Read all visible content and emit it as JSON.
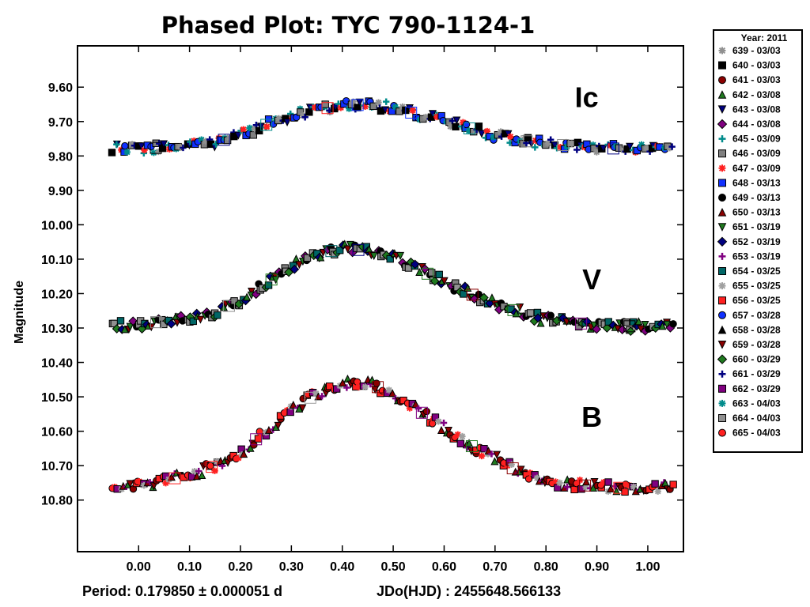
{
  "chart_data": {
    "type": "scatter",
    "title": "Phased Plot: TYC 790-1124-1",
    "xlabel": "",
    "ylabel": "Magnitude",
    "xlim": [
      -0.12,
      1.07
    ],
    "ylim": [
      9.48,
      10.95
    ],
    "y_inverted": true,
    "x_ticks": [
      "0.00",
      "0.10",
      "0.20",
      "0.30",
      "0.40",
      "0.50",
      "0.60",
      "0.70",
      "0.80",
      "0.90",
      "1.00"
    ],
    "y_ticks": [
      "9.60",
      "9.70",
      "9.80",
      "9.90",
      "10.00",
      "10.10",
      "10.20",
      "10.30",
      "10.40",
      "10.50",
      "10.60",
      "10.70",
      "10.80"
    ],
    "band_labels": [
      {
        "text": "Ic",
        "x": 0.88,
        "y": 9.63
      },
      {
        "text": "V",
        "x": 0.89,
        "y": 10.16
      },
      {
        "text": "B",
        "x": 0.89,
        "y": 10.56
      }
    ],
    "bands": [
      {
        "name": "Ic",
        "x": [
          -0.05,
          0.0,
          0.05,
          0.1,
          0.15,
          0.2,
          0.25,
          0.3,
          0.35,
          0.4,
          0.45,
          0.5,
          0.55,
          0.6,
          0.65,
          0.7,
          0.75,
          0.8,
          0.85,
          0.9,
          0.95,
          1.0,
          1.05
        ],
        "mag": [
          9.78,
          9.78,
          9.775,
          9.77,
          9.76,
          9.74,
          9.71,
          9.685,
          9.665,
          9.655,
          9.65,
          9.66,
          9.68,
          9.7,
          9.72,
          9.74,
          9.755,
          9.765,
          9.77,
          9.775,
          9.78,
          9.78,
          9.775
        ]
      },
      {
        "name": "V",
        "x": [
          -0.05,
          0.0,
          0.05,
          0.1,
          0.15,
          0.2,
          0.25,
          0.3,
          0.35,
          0.4,
          0.45,
          0.5,
          0.55,
          0.6,
          0.65,
          0.7,
          0.75,
          0.8,
          0.85,
          0.9,
          0.95,
          1.0,
          1.05
        ],
        "mag": [
          10.29,
          10.29,
          10.28,
          10.27,
          10.255,
          10.22,
          10.17,
          10.12,
          10.085,
          10.07,
          10.075,
          10.095,
          10.13,
          10.165,
          10.2,
          10.23,
          10.255,
          10.275,
          10.285,
          10.29,
          10.295,
          10.295,
          10.29
        ]
      },
      {
        "name": "B",
        "x": [
          -0.05,
          0.0,
          0.05,
          0.1,
          0.15,
          0.2,
          0.25,
          0.3,
          0.35,
          0.4,
          0.45,
          0.5,
          0.55,
          0.6,
          0.65,
          0.7,
          0.75,
          0.8,
          0.85,
          0.9,
          0.95,
          1.0,
          1.05
        ],
        "mag": [
          10.765,
          10.76,
          10.745,
          10.725,
          10.7,
          10.66,
          10.6,
          10.54,
          10.49,
          10.46,
          10.46,
          10.49,
          10.54,
          10.59,
          10.64,
          10.68,
          10.72,
          10.745,
          10.755,
          10.76,
          10.765,
          10.765,
          10.76
        ]
      }
    ],
    "legend_title": "Year: 2011",
    "legend_position": "outside-right",
    "series": [
      {
        "name": "639 - 03/03",
        "marker": "star",
        "color": "#909090"
      },
      {
        "name": "640 - 03/03",
        "marker": "square",
        "color": "#000000"
      },
      {
        "name": "641 - 03/03",
        "marker": "circle",
        "color": "#8b0000"
      },
      {
        "name": "642 - 03/08",
        "marker": "triangle-up",
        "color": "#1f7a1f"
      },
      {
        "name": "643 - 03/08",
        "marker": "triangle-down",
        "color": "#000080"
      },
      {
        "name": "644 - 03/08",
        "marker": "diamond",
        "color": "#800080"
      },
      {
        "name": "645 - 03/09",
        "marker": "plus",
        "color": "#008b8b"
      },
      {
        "name": "646 - 03/09",
        "marker": "square",
        "color": "#808080"
      },
      {
        "name": "647 - 03/09",
        "marker": "star",
        "color": "#ff2020"
      },
      {
        "name": "648 - 03/13",
        "marker": "square",
        "color": "#1030ff"
      },
      {
        "name": "649 - 03/13",
        "marker": "circle",
        "color": "#000000"
      },
      {
        "name": "650 - 03/13",
        "marker": "triangle-up",
        "color": "#8b0000"
      },
      {
        "name": "651 - 03/19",
        "marker": "triangle-down",
        "color": "#1f7a1f"
      },
      {
        "name": "652 - 03/19",
        "marker": "diamond",
        "color": "#000080"
      },
      {
        "name": "653 - 03/19",
        "marker": "plus",
        "color": "#800080"
      },
      {
        "name": "654 - 03/25",
        "marker": "square",
        "color": "#006666"
      },
      {
        "name": "655 - 03/25",
        "marker": "star",
        "color": "#a0a0a0"
      },
      {
        "name": "656 - 03/25",
        "marker": "square",
        "color": "#ff2020"
      },
      {
        "name": "657 - 03/28",
        "marker": "circle",
        "color": "#1030ff"
      },
      {
        "name": "658 - 03/28",
        "marker": "triangle-up",
        "color": "#000000"
      },
      {
        "name": "659 - 03/28",
        "marker": "triangle-down",
        "color": "#8b0000"
      },
      {
        "name": "660 - 03/29",
        "marker": "diamond",
        "color": "#1f7a1f"
      },
      {
        "name": "661 - 03/29",
        "marker": "plus",
        "color": "#000080"
      },
      {
        "name": "662 - 03/29",
        "marker": "square",
        "color": "#800080"
      },
      {
        "name": "663 - 04/03",
        "marker": "star",
        "color": "#008b8b"
      },
      {
        "name": "664 - 04/03",
        "marker": "square",
        "color": "#909090"
      },
      {
        "name": "665 - 04/03",
        "marker": "circle",
        "color": "#ff2020"
      }
    ],
    "band_series": {
      "Ic": [
        1,
        4,
        6,
        8,
        9,
        18,
        24,
        7,
        0,
        22
      ],
      "V": [
        7,
        25,
        21,
        15,
        13,
        3,
        20,
        12,
        5,
        10
      ],
      "B": [
        26,
        8,
        23,
        16,
        11,
        14,
        3,
        20,
        2,
        17
      ]
    },
    "footer_left": "Period: 0.179850 ± 0.000051 d",
    "footer_right": "JDo(HJD) : 2455648.566133"
  }
}
